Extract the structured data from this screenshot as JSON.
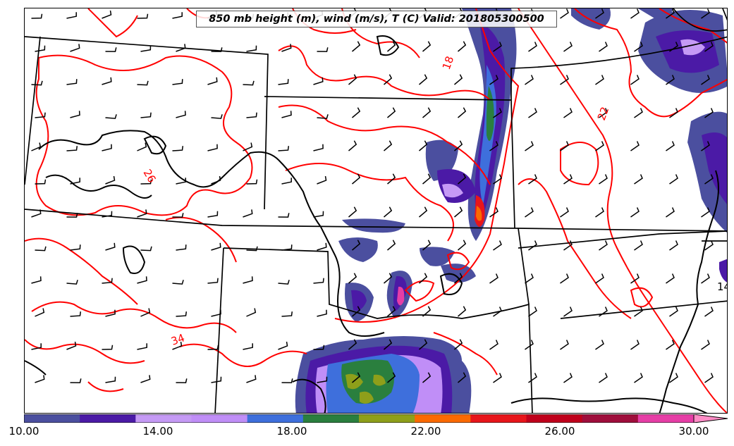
{
  "title": "850 mb height (m), wind (m/s), T (C) Valid: 201805300500",
  "colorbar": {
    "colors": [
      "#4b4f9f",
      "#4b1aa6",
      "#c59af5",
      "#c08ef7",
      "#3e6fdc",
      "#2a7f3e",
      "#8e9f1a",
      "#fb6a00",
      "#e8161b",
      "#c0001c",
      "#9f0e3c",
      "#e63ea6",
      "#ff8cc6"
    ],
    "ticks": [
      "10.00",
      "14.00",
      "18.00",
      "22.00",
      "26.00",
      "30.00"
    ]
  },
  "contour_labels": {
    "temp": [
      "18",
      "22",
      "26",
      "34"
    ],
    "height": [
      "14"
    ]
  }
}
